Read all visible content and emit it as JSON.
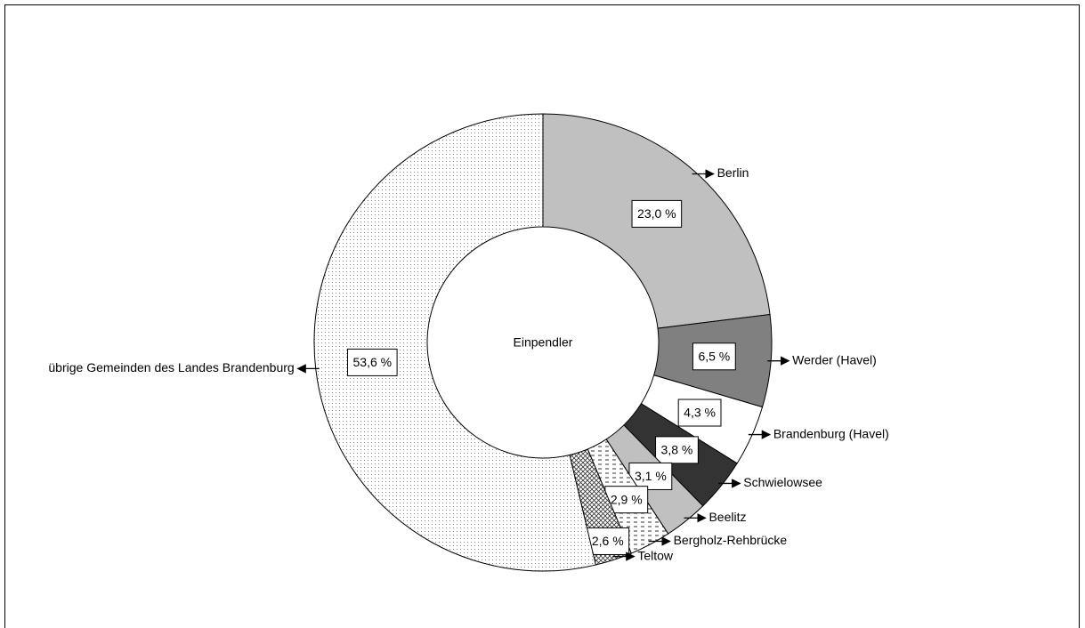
{
  "chart_data": {
    "type": "donut",
    "center_label": "Einpendler",
    "categories": [
      "Berlin",
      "Werder (Havel)",
      "Brandenburg (Havel)",
      "Schwielowsee",
      "Beelitz",
      "Bergholz-Rehbrücke",
      "Teltow",
      "übrige Gemeinden des Landes Brandenburg"
    ],
    "values": [
      23.0,
      6.5,
      4.3,
      3.8,
      3.1,
      2.9,
      2.6,
      53.6
    ],
    "value_labels": [
      "23,0 %",
      "6,5 %",
      "4,3 %",
      "3,8 %",
      "3,1 %",
      "2,9 %",
      "2,6 %",
      "53,6 %"
    ],
    "colors": [
      "#c0c0c0",
      "#808080",
      "#ffffff",
      "#333333",
      "#c0c0c0",
      "#ffffff",
      "#ffffff",
      "#ffffff"
    ],
    "patterns": [
      null,
      null,
      null,
      null,
      null,
      "dashes",
      "crosshatch",
      "dots"
    ]
  }
}
